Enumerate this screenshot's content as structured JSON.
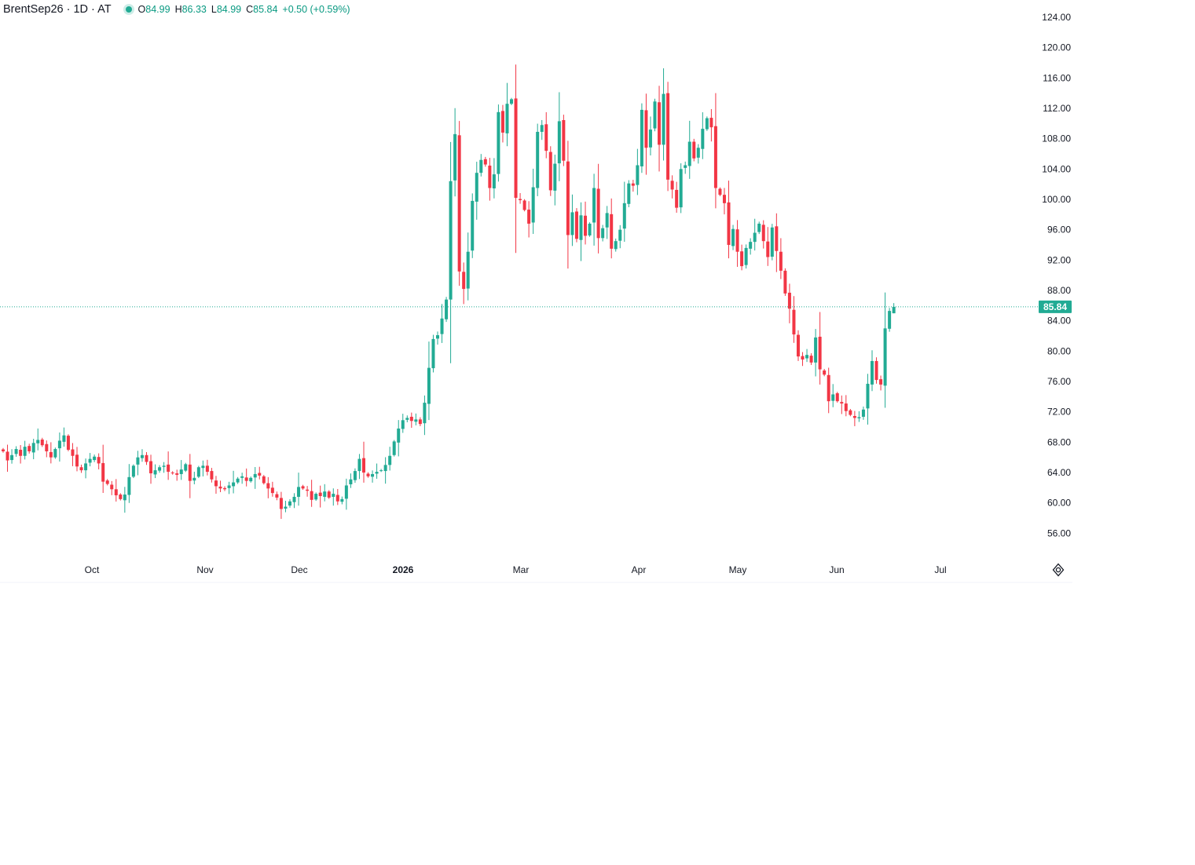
{
  "header": {
    "symbol": "BrentSep26 · 1D · AT",
    "open_key": "O",
    "open": "84.99",
    "high_key": "H",
    "high": "86.33",
    "low_key": "L",
    "low": "84.99",
    "close_key": "C",
    "close": "85.84",
    "change": "+0.50 (+0.59%)"
  },
  "colors": {
    "up": "#22ab94",
    "down": "#f23645",
    "text": "#131722",
    "price_line": "#22ab94"
  },
  "last_price_label": "85.84",
  "icons": {
    "settings": "settings-icon"
  },
  "chart_data": {
    "type": "candlestick",
    "title": "BrentSep26 · 1D · AT",
    "ylim": [
      52,
      126
    ],
    "y_ticks": [
      124,
      120,
      116,
      112,
      108,
      104,
      100,
      96,
      92,
      88,
      84,
      80,
      76,
      72,
      68,
      64,
      60,
      56
    ],
    "y_tick_labels": [
      "124.00",
      "120.00",
      "116.00",
      "112.00",
      "108.00",
      "104.00",
      "100.00",
      "96.00",
      "92.00",
      "88.00",
      "84.00",
      "80.00",
      "76.00",
      "72.00",
      "68.00",
      "64.00",
      "60.00",
      "56.00"
    ],
    "x_labels": [
      "Oct",
      "Nov",
      "Dec",
      "2026",
      "Mar",
      "Apr",
      "May",
      "Jun",
      "Jul"
    ],
    "last_price": 85.84,
    "grid": false,
    "closes": [
      66.8,
      65.6,
      66.3,
      67.1,
      66.2,
      67.4,
      66.8,
      67.9,
      68.3,
      67.6,
      66.8,
      66.0,
      67.1,
      68.2,
      68.9,
      67.0,
      66.2,
      64.8,
      64.3,
      65.2,
      65.8,
      66.1,
      65.2,
      62.8,
      62.5,
      61.8,
      61.0,
      60.5,
      61.1,
      63.4,
      64.9,
      66.0,
      66.3,
      65.4,
      63.9,
      64.3,
      64.7,
      64.9,
      64.1,
      63.9,
      63.7,
      64.4,
      65.1,
      62.9,
      63.3,
      64.7,
      64.9,
      64.1,
      63.1,
      62.2,
      61.9,
      61.8,
      62.3,
      62.7,
      63.2,
      63.5,
      62.9,
      63.3,
      63.8,
      63.6,
      62.6,
      61.9,
      61.3,
      60.7,
      59.2,
      59.5,
      60.2,
      60.8,
      62.1,
      61.9,
      61.6,
      60.4,
      61.2,
      60.9,
      61.5,
      60.7,
      61.2,
      60.2,
      60.5,
      62.3,
      63.1,
      64.2,
      65.8,
      64.0,
      63.5,
      63.8,
      64.1,
      64.3,
      65.0,
      66.2,
      68.1,
      69.8,
      70.9,
      71.2,
      70.8,
      71.0,
      70.4,
      73.2,
      77.8,
      81.6,
      82.1,
      84.3,
      86.8,
      102.4,
      108.6,
      90.5,
      88.2,
      93.1,
      99.8,
      103.5,
      105.2,
      104.6,
      101.5,
      103.3,
      111.5,
      108.8,
      112.6,
      113.2,
      100.2,
      99.9,
      98.6,
      96.8,
      101.6,
      108.9,
      109.8,
      106.4,
      101.2,
      104.7,
      110.3,
      105.1,
      95.3,
      98.3,
      94.8,
      97.9,
      95.2,
      96.8,
      101.5,
      94.9,
      96.2,
      98.2,
      93.5,
      94.5,
      96.0,
      99.5,
      102.1,
      101.8,
      104.5,
      111.8,
      106.8,
      109.2,
      112.9,
      107.2,
      113.9,
      102.6,
      101.3,
      98.9,
      104.0,
      104.5,
      107.6,
      105.4,
      106.8,
      109.3,
      110.7,
      109.5,
      101.5,
      100.6,
      99.5,
      94.0,
      96.1,
      93.1,
      91.2,
      93.6,
      94.4,
      95.6,
      96.8,
      94.5,
      92.4,
      96.3,
      93.2,
      90.6,
      87.6,
      85.6,
      82.2,
      79.3,
      78.9,
      79.5,
      78.5,
      81.8,
      77.6,
      76.9,
      73.4,
      74.3,
      73.4,
      73.1,
      72.1,
      71.6,
      71.2,
      71.3,
      72.3,
      75.7,
      78.7,
      76.2,
      75.6,
      83.0,
      85.3,
      85.84
    ]
  }
}
